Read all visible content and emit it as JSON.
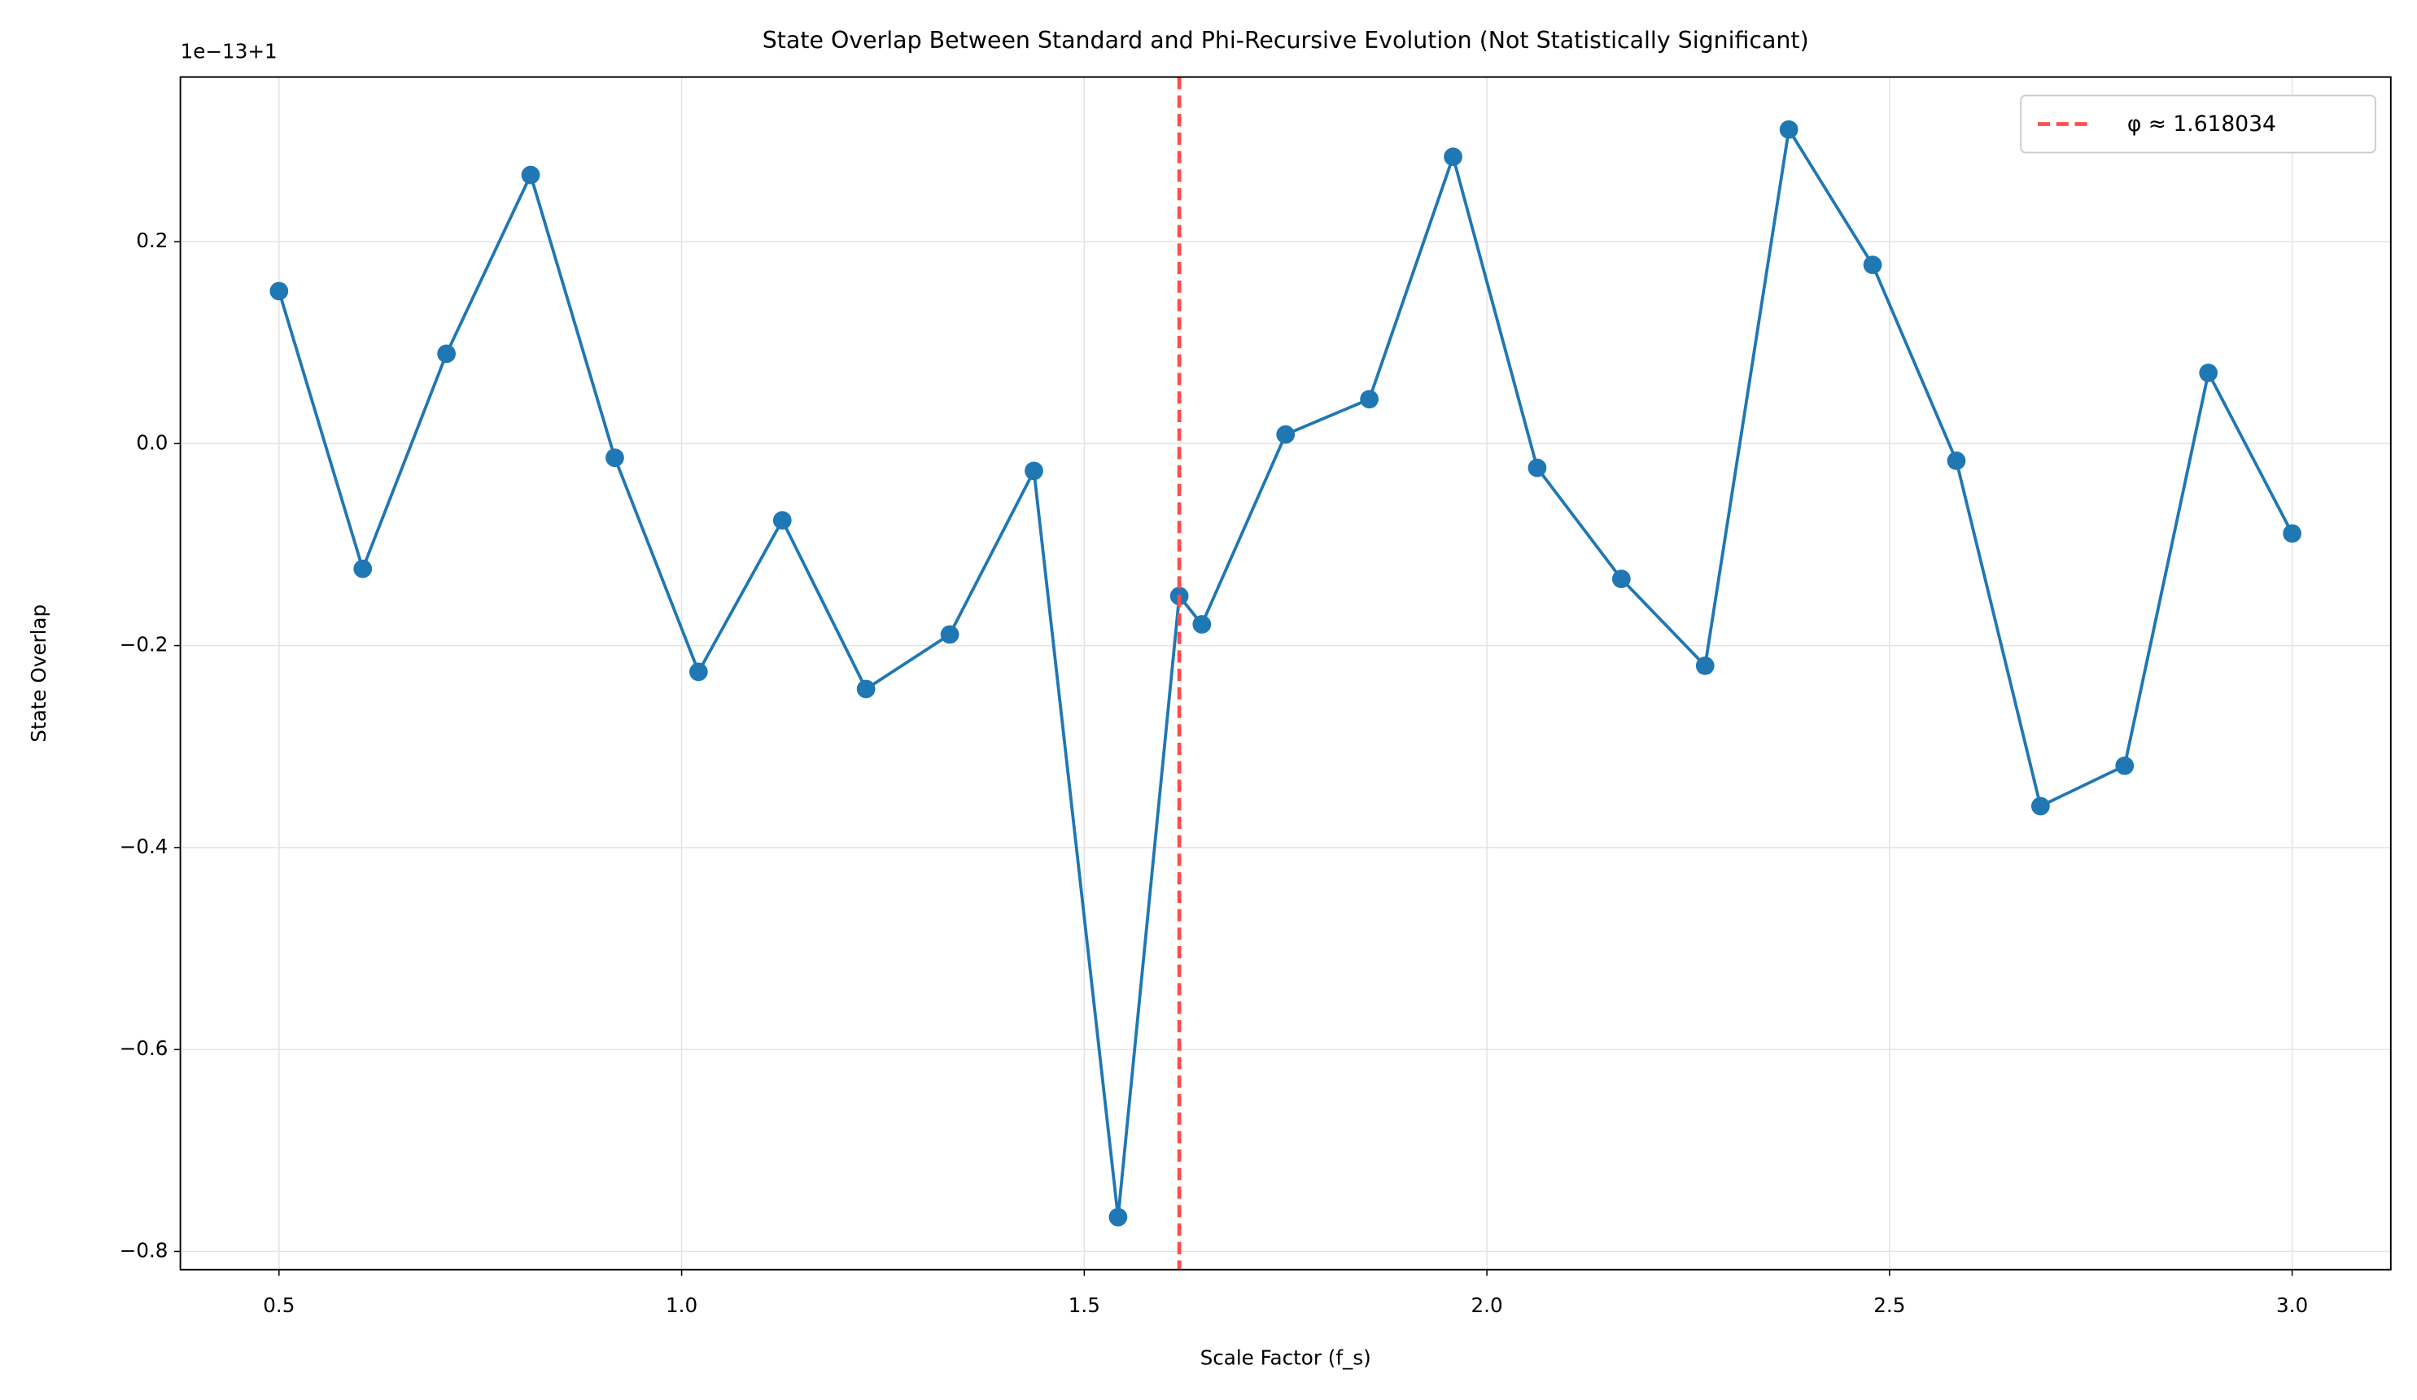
{
  "chart_data": {
    "type": "line",
    "title": "State Overlap Between Standard and Phi-Recursive Evolution (Not Statistically Significant)",
    "x_label": "Scale Factor (f_s)",
    "y_label": "State Overlap",
    "y_offset_text": "1e−13+1",
    "x": [
      0.5,
      0.604,
      0.708,
      0.8125,
      0.917,
      1.021,
      1.125,
      1.229,
      1.333,
      1.4375,
      1.542,
      1.618034,
      1.646,
      1.75,
      1.854,
      1.958,
      2.0625,
      2.167,
      2.271,
      2.375,
      2.479,
      2.583,
      2.6875,
      2.792,
      2.896,
      3.0
    ],
    "series": [
      {
        "name": "State Overlap",
        "color": "#1f77b4",
        "values": [
          0.151,
          -0.124,
          0.089,
          0.266,
          -0.014,
          -0.226,
          -0.076,
          -0.243,
          -0.189,
          -0.027,
          -0.766,
          -0.151,
          -0.179,
          0.009,
          0.044,
          0.284,
          -0.024,
          -0.134,
          -0.22,
          0.311,
          0.177,
          -0.017,
          -0.359,
          -0.319,
          0.07,
          -0.089
        ]
      }
    ],
    "reference_line": {
      "name": "φ ≈ 1.618034",
      "x": 1.618034,
      "color": "#ff4d4d"
    },
    "xlim": [
      0.3775,
      3.1225
    ],
    "ylim": [
      -0.818,
      0.363
    ],
    "xticks": [
      0.5,
      {
        "value": 1.0,
        "label": "1.0"
      },
      1.5,
      {
        "value": 2.0,
        "label": "2.0"
      },
      2.5,
      {
        "value": 3.0,
        "label": "3.0"
      }
    ],
    "yticks": [
      {
        "value": -0.8,
        "label": "−0.8"
      },
      {
        "value": -0.6,
        "label": "−0.6"
      },
      {
        "value": -0.4,
        "label": "−0.4"
      },
      {
        "value": -0.2,
        "label": "−0.2"
      },
      {
        "value": 0.0,
        "label": "0.0"
      },
      0.2
    ],
    "grid": true,
    "legend": "upper right"
  }
}
